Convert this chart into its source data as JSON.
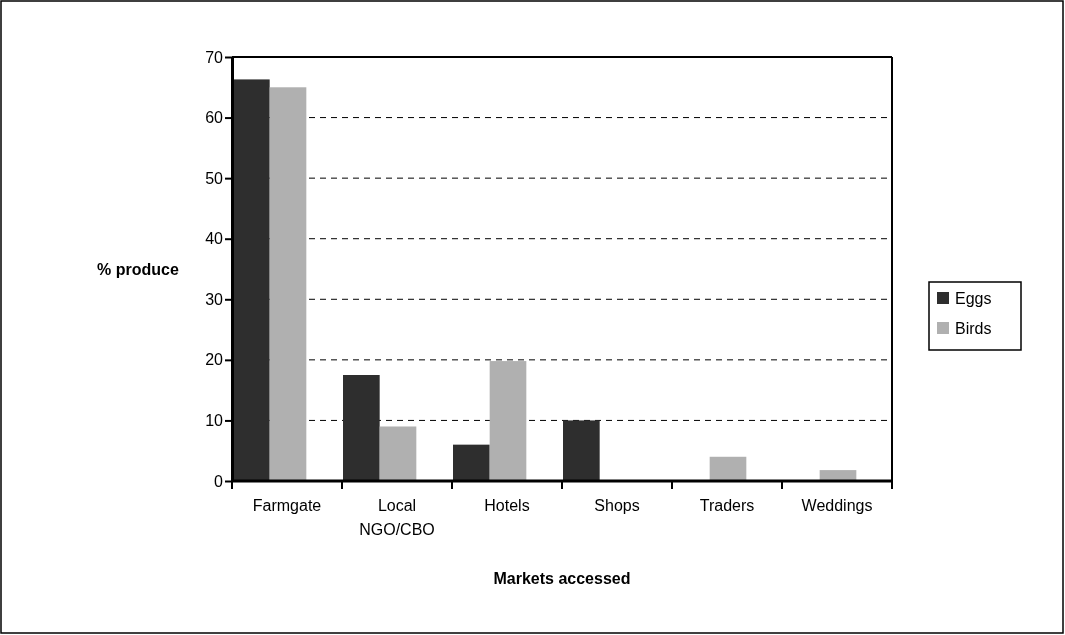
{
  "chart_data": {
    "type": "bar",
    "xlabel": "Markets accessed",
    "ylabel": "% produce",
    "categories": [
      "Farmgate",
      "Local NGO/CBO",
      "Hotels",
      "Shops",
      "Traders",
      "Weddings"
    ],
    "series": [
      {
        "name": "Eggs",
        "color": "#2e2e2e",
        "values": [
          66.3,
          17.5,
          6,
          10,
          0,
          0
        ]
      },
      {
        "name": "Birds",
        "color": "#b0b0b0",
        "values": [
          65,
          9,
          19.8,
          0,
          4,
          1.8
        ]
      }
    ],
    "ylim": [
      0,
      70
    ],
    "yticks": [
      0,
      10,
      20,
      30,
      40,
      50,
      60,
      70
    ],
    "grid": "y",
    "legend": "right"
  }
}
